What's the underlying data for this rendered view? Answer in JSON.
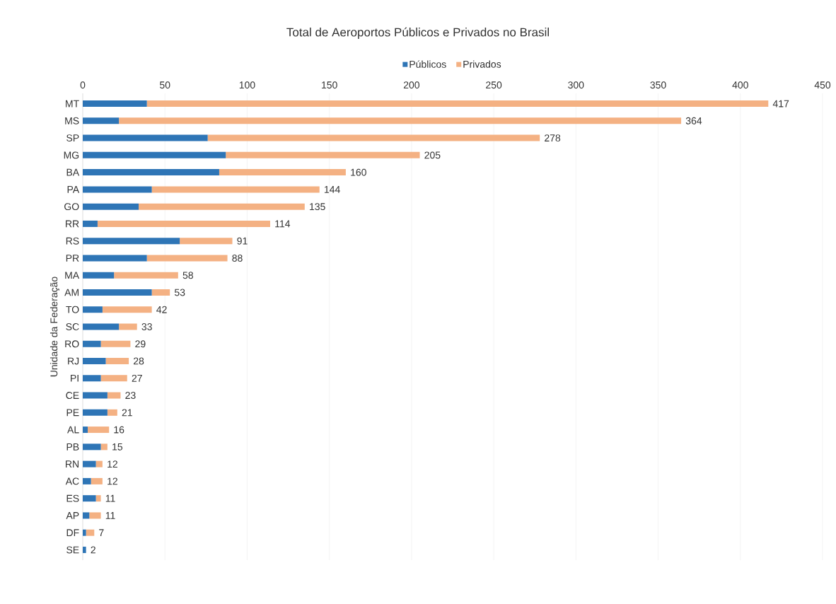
{
  "chart_data": {
    "type": "bar",
    "orientation": "horizontal",
    "stacked": true,
    "title": "Total de Aeroportos Públicos e Privados no Brasil",
    "ylabel": "Unidade da Federação",
    "categories": [
      "MT",
      "MS",
      "SP",
      "MG",
      "BA",
      "PA",
      "GO",
      "RR",
      "RS",
      "PR",
      "MA",
      "AM",
      "TO",
      "SC",
      "RO",
      "RJ",
      "PI",
      "CE",
      "PE",
      "AL",
      "PB",
      "RN",
      "AC",
      "ES",
      "AP",
      "DF",
      "SE"
    ],
    "series": [
      {
        "name": "Públicos",
        "color": "#2e75b6",
        "values": [
          39,
          22,
          76,
          87,
          83,
          42,
          34,
          9,
          59,
          39,
          19,
          42,
          12,
          22,
          11,
          14,
          11,
          15,
          15,
          3,
          11,
          8,
          5,
          8,
          4,
          2,
          2
        ]
      },
      {
        "name": "Privados",
        "color": "#f4b183",
        "values": [
          378,
          342,
          202,
          118,
          77,
          102,
          101,
          105,
          32,
          49,
          39,
          11,
          30,
          11,
          18,
          14,
          16,
          8,
          6,
          13,
          4,
          4,
          7,
          3,
          7,
          5,
          0
        ]
      }
    ],
    "totals": [
      "417",
      "364",
      "278",
      "205",
      "160",
      "144",
      "135",
      "114",
      "91",
      "88",
      "58",
      "53",
      "42",
      "33",
      "29",
      "28",
      "27",
      "23",
      "21",
      "16",
      "15",
      "12",
      "12",
      "11",
      "11",
      "7",
      "2"
    ],
    "xlim": [
      0,
      450
    ],
    "xticks": [
      0,
      50,
      100,
      150,
      200,
      250,
      300,
      350,
      400,
      450
    ],
    "grid": "x",
    "legend": "top"
  }
}
